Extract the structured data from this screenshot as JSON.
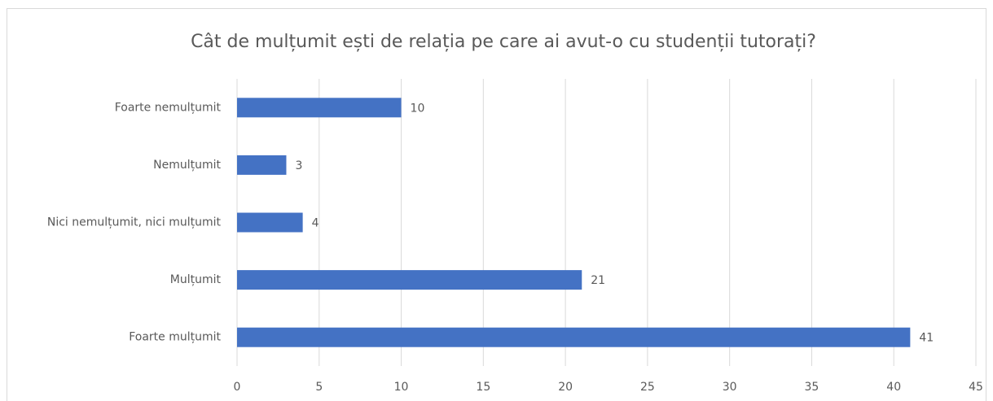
{
  "chart_data": {
    "type": "bar",
    "orientation": "horizontal",
    "title": "Cât de mulțumit ești de relația pe care ai avut-o cu studenții tutorați?",
    "categories": [
      "Foarte nemulțumit",
      "Nemulțumit",
      "Nici nemulțumit, nici mulțumit",
      "Mulțumit",
      "Foarte mulțumit"
    ],
    "values": [
      10,
      3,
      4,
      21,
      41
    ],
    "color": "#4472c4",
    "xlim": [
      0,
      45
    ],
    "xticks": [
      0,
      5,
      10,
      15,
      20,
      25,
      30,
      35,
      40,
      45
    ],
    "grid": true
  }
}
